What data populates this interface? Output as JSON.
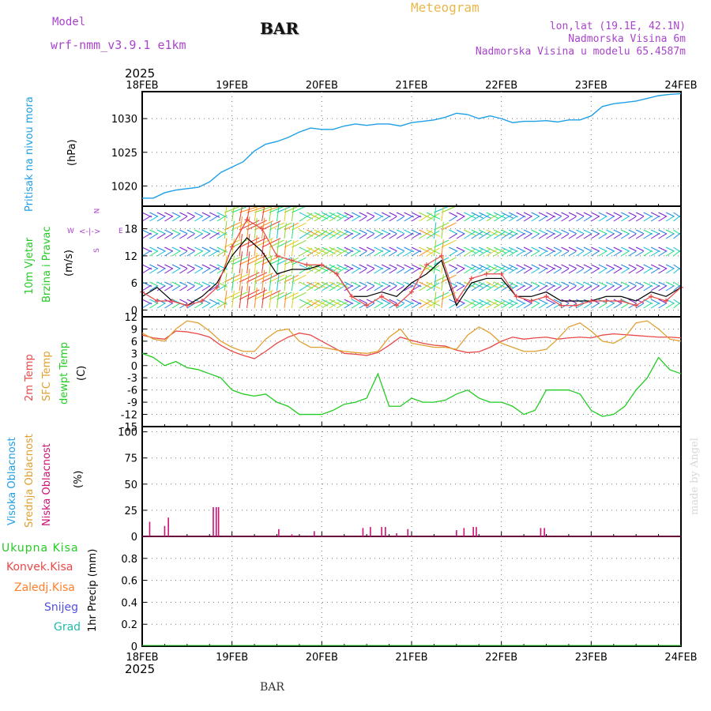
{
  "header": {
    "model_label": "Model",
    "model_name": "wrf-nmm_v3.9.1 e1km",
    "station": "BAR",
    "title": "Meteogram",
    "lonlat": "lon,lat (19.1E, 42.1N)",
    "elev": "Nadmorska Visina 6m",
    "elev_model": "Nadmorska Visina u modelu 65.4587m",
    "year": "2025",
    "footer_station": "BAR",
    "credit": "made by Angel"
  },
  "colors": {
    "pressure": "#1ea0e6",
    "temp2m": "#e84848",
    "sfc": "#e0a030",
    "dew": "#22cc22",
    "high_cloud": "#1ea0e6",
    "mid_cloud": "#e0a030",
    "low_cloud": "#cc1177",
    "total_precip": "#22cc22",
    "conv_precip": "#e84848",
    "frz_precip": "#ff7f2a",
    "snow": "#5050e0",
    "grad": "#22bbaa",
    "title": "#e8b84a",
    "meta": "#aa44cc"
  },
  "chart_data": [
    {
      "type": "line",
      "panel": "pressure",
      "ylabel1": "Pritisak na nivou mora",
      "ylabel2": "(hPa)",
      "x_labels": [
        "18FEB",
        "19FEB",
        "20FEB",
        "21FEB",
        "22FEB",
        "23FEB",
        "24FEB"
      ],
      "x_range": [
        0,
        144
      ],
      "ylim": [
        1017,
        1034
      ],
      "yticks": [
        1020,
        1025,
        1030
      ],
      "grid": true,
      "x": [
        0,
        3,
        6,
        9,
        12,
        15,
        18,
        21,
        24,
        27,
        30,
        33,
        36,
        39,
        42,
        45,
        48,
        51,
        54,
        57,
        60,
        63,
        66,
        69,
        72,
        75,
        78,
        81,
        84,
        87,
        90,
        93,
        96,
        99,
        102,
        105,
        108,
        111,
        114,
        117,
        120,
        123,
        126,
        129,
        132,
        135,
        138,
        141,
        144
      ],
      "values": [
        1018.2,
        1018.2,
        1019,
        1019.4,
        1019.6,
        1019.8,
        1020.6,
        1022,
        1022.8,
        1023.6,
        1025.2,
        1026.2,
        1026.6,
        1027.2,
        1028,
        1028.6,
        1028.4,
        1028.4,
        1028.9,
        1029.2,
        1029,
        1029.2,
        1029.2,
        1028.9,
        1029.4,
        1029.6,
        1029.8,
        1030.2,
        1030.8,
        1030.6,
        1030,
        1030.4,
        1030,
        1029.4,
        1029.6,
        1029.6,
        1029.7,
        1029.5,
        1029.8,
        1029.8,
        1030.4,
        1031.8,
        1032.2,
        1032.4,
        1032.6,
        1033,
        1033.4,
        1033.6,
        1033.7
      ],
      "series": [
        {
          "name": "",
          "color": "#1ea0e6"
        }
      ]
    },
    {
      "type": "line",
      "panel": "wind",
      "ylabel1": "10m Vjetar",
      "ylabel2": "Brzina i Pravac",
      "ylabel3": "(m/s)",
      "compass": {
        "n": "N",
        "s": "S",
        "w": "W",
        "e": "E",
        "arrow": "<-|->"
      },
      "ylim": [
        -1.5,
        23
      ],
      "yticks": [
        0,
        6,
        12,
        18
      ],
      "grid": true,
      "x": [
        0,
        4,
        8,
        12,
        16,
        20,
        24,
        28,
        32,
        36,
        40,
        44,
        48,
        52,
        56,
        60,
        64,
        68,
        72,
        76,
        80,
        84,
        88,
        92,
        96,
        100,
        104,
        108,
        112,
        116,
        120,
        124,
        128,
        132,
        136,
        140,
        144
      ],
      "series": [
        {
          "name": "",
          "color": "#000000",
          "values": [
            3,
            5,
            2,
            1,
            3,
            6,
            12,
            16,
            13,
            8,
            9,
            9,
            10,
            8,
            3,
            3,
            4,
            3,
            6,
            8,
            11,
            1,
            6,
            7,
            7,
            3,
            3,
            4,
            2,
            2,
            2,
            3,
            3,
            2,
            4,
            3,
            5
          ]
        },
        {
          "name": "",
          "color": "#e84848",
          "values": [
            4,
            2,
            2,
            1,
            2,
            5,
            14,
            20,
            18,
            12,
            11,
            10,
            10,
            8,
            3,
            1,
            3,
            1,
            4,
            10,
            12,
            2,
            7,
            8,
            8,
            3,
            2,
            3,
            1,
            1,
            2,
            2,
            2,
            1,
            3,
            2,
            5
          ]
        }
      ],
      "arrow_colors": [
        "#7b1fd0",
        "#1e88e5",
        "#13c2d2",
        "#1ee37c",
        "#8bd82e",
        "#e0d020",
        "#ff8a1a",
        "#e83a2a"
      ]
    },
    {
      "type": "line",
      "panel": "temperature",
      "ylabel1": "2m Temp",
      "ylabel2": "SFC Temp",
      "ylabel3": "dewpt Temp",
      "ylabel4": "(C)",
      "ylim": [
        -15,
        12
      ],
      "yticks": [
        12,
        9,
        6,
        3,
        0,
        -3,
        -6,
        -9,
        -12,
        -15
      ],
      "grid": true,
      "x": [
        0,
        3,
        6,
        9,
        12,
        15,
        18,
        21,
        24,
        27,
        30,
        33,
        36,
        39,
        42,
        45,
        48,
        51,
        54,
        57,
        60,
        63,
        66,
        69,
        72,
        75,
        78,
        81,
        84,
        87,
        90,
        93,
        96,
        99,
        102,
        105,
        108,
        111,
        114,
        117,
        120,
        123,
        126,
        129,
        132,
        135,
        138,
        141,
        144
      ],
      "series": [
        {
          "name": "",
          "color": "#e84848",
          "values": [
            7.5,
            6.8,
            6.5,
            8.5,
            8.3,
            7.8,
            7,
            5,
            3.5,
            2.5,
            1.7,
            3.5,
            5.5,
            7,
            8,
            7.5,
            6,
            4.5,
            3,
            2.8,
            2.5,
            3.2,
            5,
            7,
            6.2,
            5.5,
            5,
            4.8,
            3.8,
            3.2,
            3.4,
            4.5,
            6,
            7,
            6.5,
            6.8,
            7,
            6.5,
            6.8,
            7,
            6.8,
            7.5,
            7.8,
            7.6,
            7.4,
            7.2,
            7,
            7,
            6.8
          ]
        },
        {
          "name": "",
          "color": "#e0a030",
          "values": [
            8,
            6.5,
            6,
            9,
            11,
            10.5,
            8.5,
            6,
            4.5,
            3.5,
            3.5,
            6.5,
            8.5,
            9,
            6,
            4.5,
            4.5,
            4,
            3.5,
            3.2,
            3,
            3.5,
            7,
            9,
            5.5,
            5,
            4.5,
            4.5,
            4,
            7.5,
            9.5,
            8,
            5.5,
            4.5,
            3.5,
            3.5,
            4,
            6.5,
            9.5,
            10.5,
            8.5,
            6,
            5.5,
            7,
            10.5,
            11,
            9,
            6.5,
            6
          ]
        },
        {
          "name": "",
          "color": "#22cc22",
          "values": [
            3,
            2,
            0,
            1,
            -0.5,
            -1,
            -2,
            -3,
            -6,
            -7,
            -7.5,
            -7,
            -9,
            -10,
            -12,
            -12,
            -12,
            -11,
            -9.5,
            -9,
            -8,
            -2,
            -10,
            -10,
            -8,
            -9,
            -9,
            -8.5,
            -7,
            -6,
            -8,
            -9,
            -9,
            -10,
            -12,
            -11,
            -6,
            -6,
            -6,
            -7,
            -11,
            -12.5,
            -12,
            -10,
            -6,
            -3,
            2,
            -1,
            -2
          ]
        }
      ]
    },
    {
      "type": "bar",
      "panel": "cloud",
      "ylabel1": "Visoka Oblacnost",
      "ylabel2": "Srednja Oblacnost",
      "ylabel3": "Niska Oblacnost",
      "ylabel4": "(%)",
      "ylim": [
        0,
        105
      ],
      "yticks": [
        0,
        25,
        50,
        75,
        100
      ],
      "grid": true,
      "x": [
        2,
        6,
        7,
        19,
        19.8,
        20.4,
        36.5,
        40,
        46,
        59,
        61,
        64,
        65,
        68,
        71,
        84,
        86,
        88.5,
        89.3,
        106.5,
        107.5
      ],
      "values": [
        14,
        10,
        18,
        28,
        28,
        28,
        7,
        2,
        5,
        8,
        9,
        9,
        9,
        3,
        7,
        6,
        8,
        9,
        9,
        8,
        8
      ],
      "series": [
        {
          "name": "",
          "color": "#cc1177"
        }
      ]
    },
    {
      "type": "bar",
      "panel": "precip",
      "ylabel1": "Ukupna Kisa",
      "ylabel2": "Konvek.Kisa",
      "ylabel3": "Zaledj.Kisa",
      "ylabel4": "Snijeg",
      "ylabel5": "Grad",
      "ylabel6": "1hr Precip (mm)",
      "ylim": [
        0,
        1.0
      ],
      "yticks": [
        0,
        0.2,
        0.4,
        0.6,
        0.8
      ],
      "ytick_labels": [
        "0",
        "0.2",
        "0.4",
        "0.6",
        "0.8"
      ],
      "grid": true,
      "x": [],
      "values": [],
      "series": [
        {
          "name": "",
          "color": "#22cc22"
        }
      ]
    }
  ]
}
